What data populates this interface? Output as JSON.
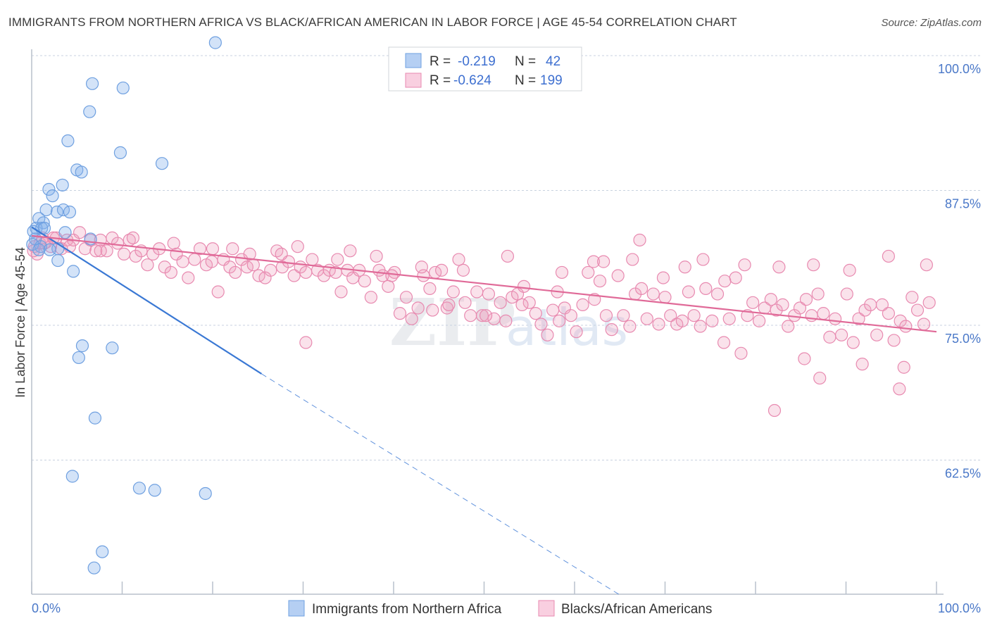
{
  "title": "IMMIGRANTS FROM NORTHERN AFRICA VS BLACK/AFRICAN AMERICAN IN LABOR FORCE | AGE 45-54 CORRELATION CHART",
  "source": "Source: ZipAtlas.com",
  "colors": {
    "blue": "#6fa0e0",
    "blue_fill": "rgba(130,175,235,0.35)",
    "blue_line": "#3a78d4",
    "pink": "#e88ab0",
    "pink_fill": "rgba(240,160,190,0.30)",
    "pink_line": "#e06a98",
    "grid": "#c8d2e0",
    "tick_text": "#4a78c8"
  },
  "chart_data": {
    "type": "scatter",
    "title": "IMMIGRANTS FROM NORTHERN AFRICA VS BLACK/AFRICAN AMERICAN IN LABOR FORCE | AGE 45-54 CORRELATION CHART",
    "xlabel": "",
    "ylabel": "In Labor Force | Age 45-54",
    "xlim": [
      0,
      100
    ],
    "ylim": [
      50,
      101.2
    ],
    "x_tick_labels": [
      "0.0%",
      "100.0%"
    ],
    "y_ticks": [
      {
        "value": 100.0,
        "label": "100.0%"
      },
      {
        "value": 87.5,
        "label": "87.5%"
      },
      {
        "value": 75.0,
        "label": "75.0%"
      },
      {
        "value": 62.5,
        "label": "62.5%"
      }
    ],
    "legend": {
      "position": "top-center",
      "rows": [
        {
          "r_label": "R =",
          "r": "-0.219",
          "n_label": "N =",
          "n": "42"
        },
        {
          "r_label": "R =",
          "r": "-0.624",
          "n_label": "N =",
          "n": "199"
        }
      ]
    },
    "watermark": "ZIPatlas",
    "series": [
      {
        "name": "Immigrants from Northern Africa",
        "color": "blue",
        "points": [
          [
            20.3,
            101.2
          ],
          [
            6.7,
            97.4
          ],
          [
            10.1,
            97.0
          ],
          [
            6.4,
            94.8
          ],
          [
            4.0,
            92.1
          ],
          [
            9.8,
            91.0
          ],
          [
            14.4,
            90.0
          ],
          [
            5.0,
            89.4
          ],
          [
            5.5,
            89.2
          ],
          [
            3.4,
            88.0
          ],
          [
            1.9,
            87.6
          ],
          [
            2.3,
            87.0
          ],
          [
            1.6,
            85.7
          ],
          [
            2.8,
            85.5
          ],
          [
            3.5,
            85.7
          ],
          [
            4.2,
            85.5
          ],
          [
            0.8,
            84.9
          ],
          [
            1.3,
            84.5
          ],
          [
            0.5,
            84.0
          ],
          [
            1.1,
            84.0
          ],
          [
            1.4,
            84.0
          ],
          [
            0.2,
            83.7
          ],
          [
            3.7,
            83.6
          ],
          [
            6.5,
            83.0
          ],
          [
            0.4,
            83.0
          ],
          [
            0.1,
            82.5
          ],
          [
            1.0,
            82.3
          ],
          [
            2.9,
            82.1
          ],
          [
            0.8,
            82.0
          ],
          [
            2.0,
            82.0
          ],
          [
            2.9,
            81.0
          ],
          [
            4.6,
            80.0
          ],
          [
            5.6,
            73.1
          ],
          [
            8.9,
            72.9
          ],
          [
            5.2,
            72.0
          ],
          [
            7.0,
            66.4
          ],
          [
            4.5,
            61.0
          ],
          [
            11.9,
            59.9
          ],
          [
            13.6,
            59.7
          ],
          [
            19.2,
            59.4
          ],
          [
            7.8,
            54.0
          ],
          [
            6.9,
            52.5
          ]
        ]
      },
      {
        "name": "Blacks/African Americans",
        "color": "pink",
        "points": [
          [
            0.3,
            82.3
          ],
          [
            0.6,
            81.6
          ],
          [
            0.9,
            82.6
          ],
          [
            1.2,
            83.1
          ],
          [
            1.6,
            82.7
          ],
          [
            2.1,
            82.3
          ],
          [
            2.7,
            83.1
          ],
          [
            3.3,
            82.1
          ],
          [
            3.9,
            82.9
          ],
          [
            4.6,
            82.9
          ],
          [
            5.3,
            83.6
          ],
          [
            5.9,
            82.1
          ],
          [
            6.5,
            82.9
          ],
          [
            7.1,
            81.9
          ],
          [
            7.6,
            82.9
          ],
          [
            8.3,
            81.9
          ],
          [
            8.9,
            83.1
          ],
          [
            9.5,
            82.6
          ],
          [
            10.2,
            81.6
          ],
          [
            10.8,
            82.9
          ],
          [
            11.5,
            81.4
          ],
          [
            12.1,
            81.9
          ],
          [
            12.8,
            80.6
          ],
          [
            13.4,
            81.6
          ],
          [
            14.1,
            82.1
          ],
          [
            14.7,
            80.4
          ],
          [
            15.4,
            79.9
          ],
          [
            16.0,
            81.6
          ],
          [
            16.7,
            80.9
          ],
          [
            17.3,
            79.4
          ],
          [
            18.0,
            81.1
          ],
          [
            18.6,
            82.1
          ],
          [
            19.3,
            80.6
          ],
          [
            19.9,
            80.9
          ],
          [
            20.6,
            78.1
          ],
          [
            21.2,
            81.1
          ],
          [
            21.9,
            80.4
          ],
          [
            22.5,
            79.9
          ],
          [
            23.2,
            81.1
          ],
          [
            23.8,
            80.4
          ],
          [
            24.5,
            80.6
          ],
          [
            25.1,
            79.6
          ],
          [
            25.8,
            79.4
          ],
          [
            26.4,
            80.1
          ],
          [
            27.1,
            81.9
          ],
          [
            27.7,
            80.4
          ],
          [
            28.4,
            80.9
          ],
          [
            29.0,
            79.6
          ],
          [
            29.7,
            80.4
          ],
          [
            30.3,
            79.9
          ],
          [
            31.0,
            81.1
          ],
          [
            31.6,
            80.1
          ],
          [
            32.3,
            79.6
          ],
          [
            32.9,
            80.1
          ],
          [
            33.6,
            79.9
          ],
          [
            34.2,
            78.1
          ],
          [
            34.9,
            80.1
          ],
          [
            35.5,
            79.4
          ],
          [
            36.2,
            80.1
          ],
          [
            36.8,
            79.1
          ],
          [
            37.5,
            77.6
          ],
          [
            38.1,
            81.4
          ],
          [
            38.8,
            79.6
          ],
          [
            39.4,
            78.6
          ],
          [
            40.1,
            79.9
          ],
          [
            40.7,
            76.1
          ],
          [
            41.4,
            77.6
          ],
          [
            42.0,
            75.6
          ],
          [
            42.7,
            76.6
          ],
          [
            43.3,
            79.6
          ],
          [
            44.0,
            78.4
          ],
          [
            44.6,
            79.9
          ],
          [
            45.3,
            80.1
          ],
          [
            45.9,
            76.6
          ],
          [
            46.6,
            78.1
          ],
          [
            47.2,
            81.1
          ],
          [
            47.9,
            77.1
          ],
          [
            48.5,
            75.9
          ],
          [
            49.2,
            78.1
          ],
          [
            49.8,
            75.9
          ],
          [
            50.5,
            77.9
          ],
          [
            51.1,
            75.6
          ],
          [
            51.8,
            77.1
          ],
          [
            52.4,
            75.4
          ],
          [
            53.1,
            77.6
          ],
          [
            53.7,
            77.9
          ],
          [
            54.4,
            78.6
          ],
          [
            55.0,
            77.1
          ],
          [
            55.7,
            76.1
          ],
          [
            56.3,
            75.1
          ],
          [
            57.0,
            74.1
          ],
          [
            57.6,
            76.4
          ],
          [
            58.3,
            75.4
          ],
          [
            58.9,
            76.6
          ],
          [
            59.6,
            75.9
          ],
          [
            60.2,
            74.4
          ],
          [
            60.9,
            76.9
          ],
          [
            61.5,
            79.9
          ],
          [
            62.2,
            77.4
          ],
          [
            62.8,
            79.1
          ],
          [
            63.5,
            75.9
          ],
          [
            64.1,
            74.6
          ],
          [
            64.8,
            79.6
          ],
          [
            65.4,
            75.9
          ],
          [
            66.1,
            74.9
          ],
          [
            66.7,
            77.9
          ],
          [
            67.4,
            78.4
          ],
          [
            68.0,
            75.6
          ],
          [
            68.7,
            77.9
          ],
          [
            69.3,
            75.1
          ],
          [
            70.0,
            77.6
          ],
          [
            70.6,
            75.9
          ],
          [
            71.3,
            75.1
          ],
          [
            71.9,
            75.4
          ],
          [
            72.6,
            78.1
          ],
          [
            73.2,
            75.9
          ],
          [
            73.9,
            74.9
          ],
          [
            74.5,
            78.4
          ],
          [
            75.2,
            75.4
          ],
          [
            75.8,
            77.9
          ],
          [
            76.5,
            73.4
          ],
          [
            77.1,
            75.6
          ],
          [
            77.8,
            79.4
          ],
          [
            78.4,
            72.4
          ],
          [
            79.1,
            75.9
          ],
          [
            79.7,
            77.1
          ],
          [
            80.4,
            75.4
          ],
          [
            81.0,
            76.6
          ],
          [
            81.7,
            77.4
          ],
          [
            82.3,
            76.4
          ],
          [
            83.0,
            76.9
          ],
          [
            83.6,
            74.9
          ],
          [
            84.3,
            75.9
          ],
          [
            84.9,
            76.6
          ],
          [
            85.6,
            77.4
          ],
          [
            86.2,
            75.9
          ],
          [
            86.9,
            77.9
          ],
          [
            87.5,
            76.1
          ],
          [
            88.2,
            73.9
          ],
          [
            88.8,
            75.6
          ],
          [
            89.5,
            74.1
          ],
          [
            90.1,
            77.9
          ],
          [
            90.8,
            73.4
          ],
          [
            91.4,
            75.6
          ],
          [
            92.1,
            76.4
          ],
          [
            92.7,
            76.9
          ],
          [
            93.4,
            74.1
          ],
          [
            94.0,
            76.9
          ],
          [
            94.7,
            76.1
          ],
          [
            95.3,
            73.6
          ],
          [
            96.0,
            75.4
          ],
          [
            96.6,
            74.9
          ],
          [
            97.3,
            77.6
          ],
          [
            97.9,
            76.4
          ],
          [
            98.6,
            75.1
          ],
          [
            99.2,
            77.1
          ],
          [
            0.2,
            81.9
          ],
          [
            1.4,
            82.6
          ],
          [
            2.4,
            83.1
          ],
          [
            4.2,
            82.3
          ],
          [
            7.6,
            81.9
          ],
          [
            11.2,
            83.1
          ],
          [
            15.7,
            82.6
          ],
          [
            20.0,
            82.1
          ],
          [
            24.1,
            81.6
          ],
          [
            29.4,
            82.3
          ],
          [
            35.2,
            81.9
          ],
          [
            39.8,
            79.6
          ],
          [
            44.3,
            76.4
          ],
          [
            46.1,
            76.9
          ],
          [
            50.2,
            75.9
          ],
          [
            54.2,
            76.9
          ],
          [
            58.1,
            78.1
          ],
          [
            62.1,
            80.9
          ],
          [
            66.4,
            81.1
          ],
          [
            69.8,
            79.4
          ],
          [
            74.2,
            81.1
          ],
          [
            78.8,
            80.6
          ],
          [
            82.6,
            80.4
          ],
          [
            86.4,
            80.6
          ],
          [
            90.4,
            80.1
          ],
          [
            94.7,
            81.4
          ],
          [
            98.9,
            80.6
          ],
          [
            76.6,
            79.1
          ],
          [
            72.2,
            80.4
          ],
          [
            67.2,
            82.9
          ],
          [
            63.2,
            80.9
          ],
          [
            58.6,
            79.9
          ],
          [
            52.6,
            81.4
          ],
          [
            47.7,
            80.1
          ],
          [
            43.1,
            80.4
          ],
          [
            38.4,
            80.1
          ],
          [
            33.8,
            81.1
          ],
          [
            27.6,
            81.6
          ],
          [
            22.2,
            82.1
          ],
          [
            87.1,
            70.1
          ],
          [
            91.8,
            71.4
          ],
          [
            95.9,
            69.1
          ],
          [
            96.4,
            71.1
          ],
          [
            85.4,
            71.9
          ],
          [
            82.1,
            67.1
          ],
          [
            30.3,
            73.4
          ]
        ]
      }
    ],
    "trend_lines": [
      {
        "series": "Immigrants from Northern Africa",
        "x0": 0,
        "y0": 84.1,
        "x_solid_end": 25.4,
        "y_solid_end": 70.5,
        "x_dash_end": 65.0,
        "y_dash_end": 50.0
      },
      {
        "series": "Blacks/African Americans",
        "x0": 0,
        "y0": 83.3,
        "x1": 100,
        "y1": 74.4
      }
    ]
  }
}
